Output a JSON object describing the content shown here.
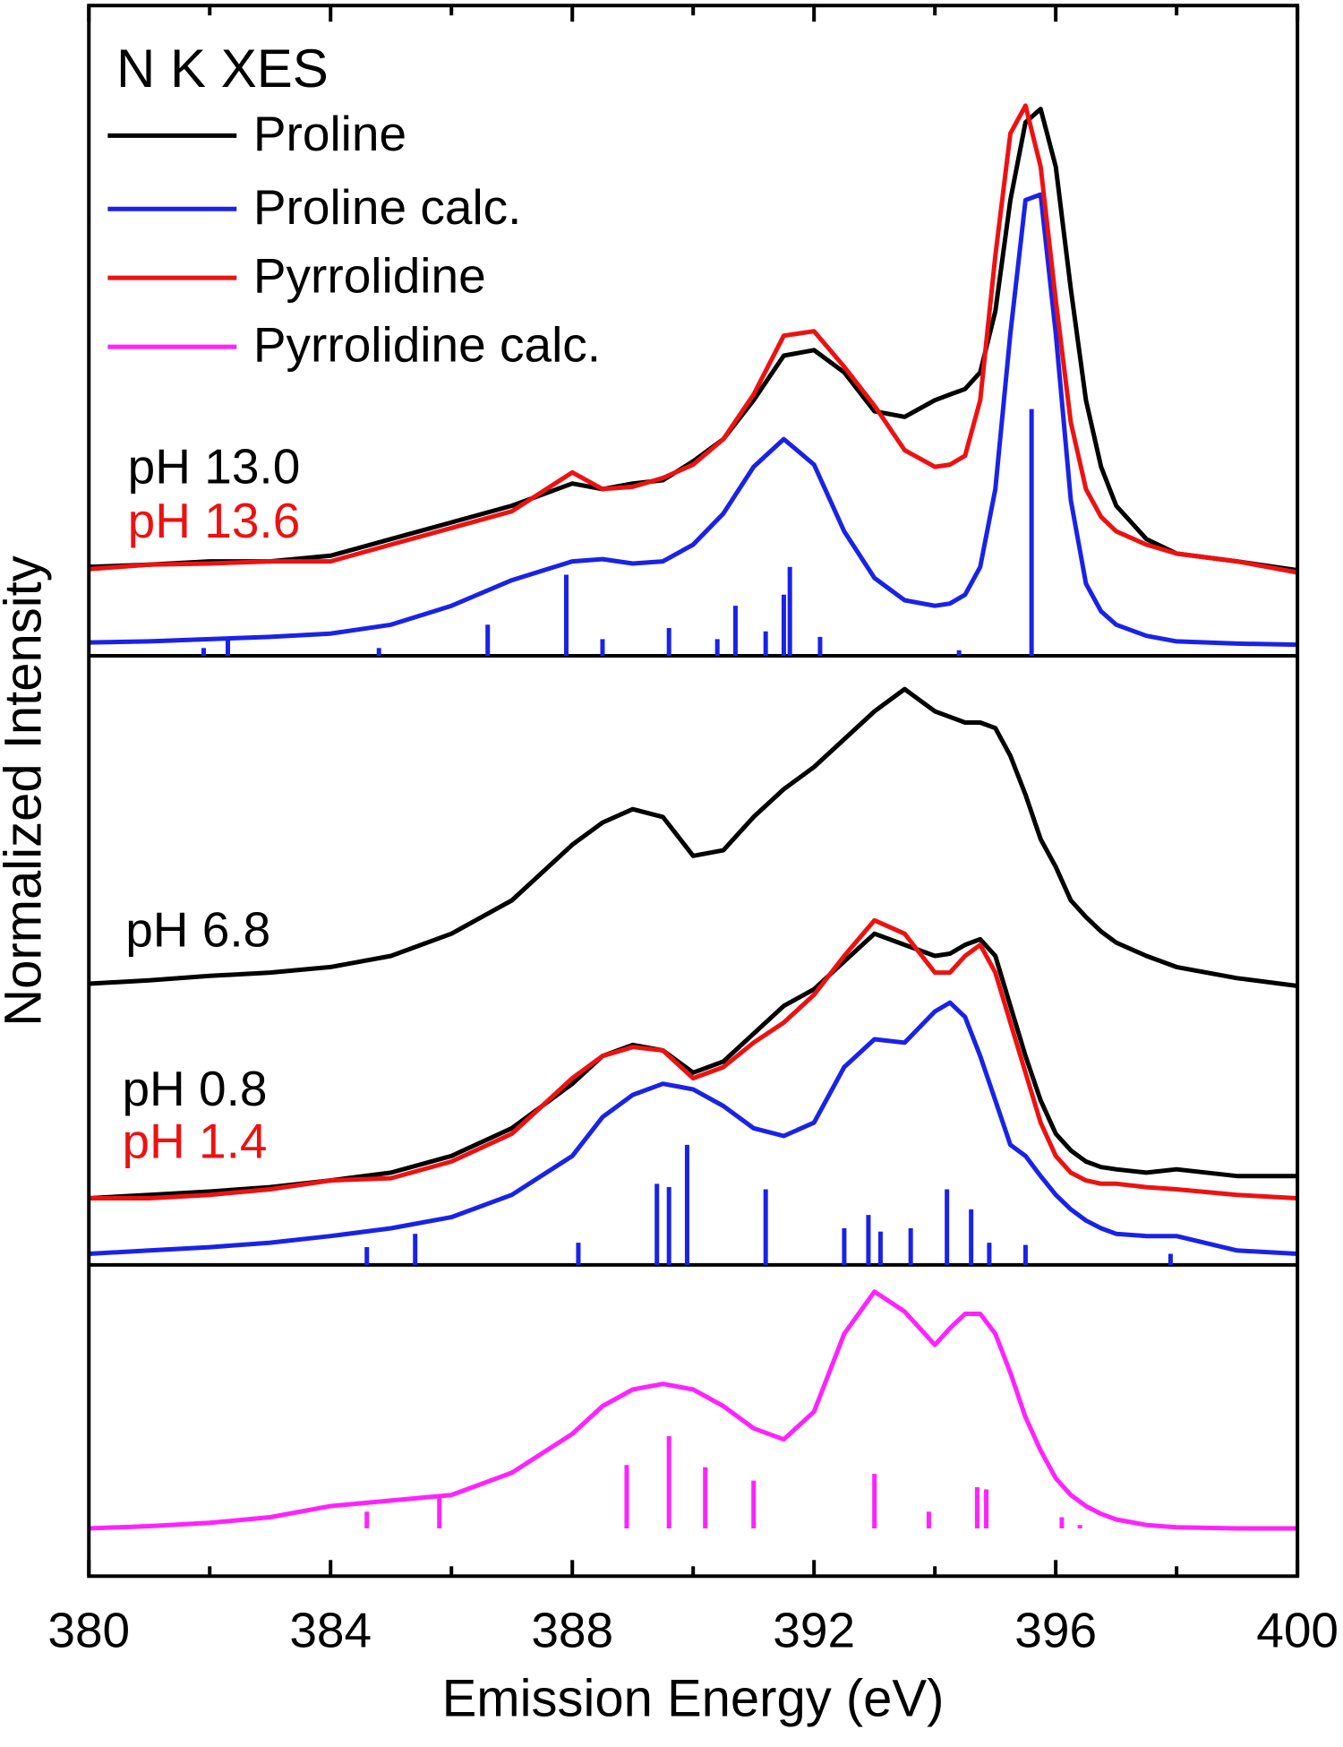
{
  "chart_data": {
    "type": "line",
    "title": "N K XES",
    "xlabel": "Emission Energy (eV)",
    "ylabel": "Normalized Intensity",
    "x": [
      380,
      381,
      382,
      383,
      384,
      385,
      386,
      387,
      388,
      388.5,
      389,
      389.5,
      390,
      390.5,
      391,
      391.5,
      392,
      392.5,
      393,
      393.5,
      394,
      394.25,
      394.5,
      394.75,
      395,
      395.25,
      395.5,
      395.75,
      396,
      396.25,
      396.5,
      396.75,
      397,
      397.5,
      398,
      399,
      400
    ],
    "xlim": [
      380,
      400
    ],
    "xticks": [
      380,
      384,
      388,
      392,
      396,
      400
    ],
    "xminorticks": [
      382,
      386,
      390,
      394,
      398
    ],
    "ylim": [
      0,
      1413
    ],
    "separators": [
      828,
      280
    ],
    "series": [
      {
        "name": "Proline",
        "color": "#000000",
        "curves": [
          [
            908,
            910,
            913,
            913,
            918,
            933,
            948,
            963,
            983,
            978,
            983,
            986,
            1003,
            1023,
            1058,
            1098,
            1103,
            1083,
            1048,
            1043,
            1058,
            1063,
            1068,
            1083,
            1138,
            1238,
            1308,
            1320,
            1268,
            1158,
            1058,
            998,
            963,
            933,
            920,
            913,
            905
          ],
          [
            533,
            536,
            540,
            543,
            548,
            558,
            578,
            608,
            658,
            678,
            690,
            683,
            648,
            653,
            683,
            708,
            728,
            753,
            778,
            798,
            778,
            773,
            768,
            768,
            763,
            738,
            703,
            663,
            638,
            608,
            593,
            580,
            570,
            558,
            548,
            538,
            531
          ],
          [
            340,
            343,
            346,
            350,
            356,
            363,
            378,
            403,
            443,
            468,
            478,
            473,
            453,
            463,
            488,
            513,
            528,
            553,
            578,
            568,
            558,
            560,
            568,
            573,
            558,
            513,
            468,
            428,
            398,
            383,
            373,
            368,
            366,
            363,
            366,
            360,
            360
          ]
        ]
      },
      {
        "name": "Proline calc.",
        "color": "#1a22e8",
        "curves": [
          [
            840,
            841,
            843,
            845,
            848,
            856,
            873,
            896,
            913,
            915,
            911,
            913,
            928,
            956,
            998,
            1023,
            1000,
            940,
            898,
            878,
            873,
            875,
            883,
            908,
            978,
            1118,
            1238,
            1243,
            1118,
            968,
            893,
            868,
            856,
            846,
            841,
            839,
            838
          ],
          [
            290,
            293,
            296,
            300,
            306,
            313,
            323,
            343,
            378,
            413,
            433,
            443,
            438,
            423,
            403,
            396,
            408,
            458,
            483,
            480,
            508,
            516,
            503,
            468,
            428,
            388,
            378,
            360,
            343,
            330,
            320,
            313,
            308,
            306,
            306,
            293,
            290
          ]
        ],
        "sticks": [
          {
            "x": [
              381.9,
              382.3,
              384.8,
              386.6,
              387.9,
              388.5,
              389.6,
              390.4,
              390.7,
              391.2,
              391.5,
              391.6,
              392.1,
              394.4,
              395.6
            ],
            "values": [
              835,
              843,
              835,
              856,
              901,
              843,
              853,
              843,
              873,
              850,
              883,
              908,
              845,
              833,
              1050
            ],
            "base": 828
          },
          {
            "x": [
              384.6,
              385.4,
              388.1,
              389.4,
              389.6,
              389.9,
              391.2,
              392.5,
              392.9,
              393.1,
              393.6,
              394.2,
              394.6,
              394.9,
              395.5,
              397.9
            ],
            "values": [
              296,
              308,
              300,
              353,
              350,
              388,
              348,
              313,
              325,
              310,
              313,
              348,
              330,
              300,
              298,
              290
            ],
            "base": 280
          }
        ]
      },
      {
        "name": "Pyrrolidine",
        "color": "#ee1111",
        "curves": [
          [
            906,
            910,
            911,
            913,
            913,
            928,
            943,
            958,
            993,
            978,
            980,
            988,
            1000,
            1023,
            1063,
            1116,
            1120,
            1088,
            1053,
            1013,
            998,
            1000,
            1008,
            1058,
            1188,
            1298,
            1323,
            1268,
            1148,
            1038,
            978,
            953,
            940,
            928,
            920,
            913,
            903
          ],
          [
            340,
            340,
            343,
            348,
            356,
            358,
            373,
            398,
            448,
            468,
            476,
            473,
            448,
            458,
            480,
            498,
            523,
            558,
            590,
            578,
            543,
            543,
            558,
            568,
            543,
            498,
            453,
            408,
            378,
            363,
            356,
            353,
            353,
            350,
            348,
            343,
            340
          ]
        ]
      },
      {
        "name": "Pyrrolidine calc.",
        "color": "#ff22ff",
        "curves": [
          [
            43,
            45,
            48,
            53,
            63,
            68,
            73,
            93,
            128,
            153,
            168,
            173,
            168,
            153,
            133,
            123,
            148,
            218,
            256,
            238,
            208,
            223,
            236,
            236,
            218,
            183,
            143,
            113,
            88,
            73,
            63,
            56,
            51,
            46,
            44,
            43,
            43
          ]
        ],
        "sticks": [
          {
            "x": [
              384.6,
              385.8,
              388.9,
              389.6,
              390.2,
              391.0,
              393.0,
              393.9,
              394.7,
              394.85,
              396.1,
              396.4
            ],
            "values": [
              58,
              73,
              100,
              126,
              98,
              86,
              92,
              58,
              80,
              78,
              53,
              46
            ],
            "base": 43
          }
        ]
      }
    ],
    "annotations": [
      {
        "text": "pH 13.0",
        "color": "#000000"
      },
      {
        "text": "pH 13.6",
        "color": "#ee1111"
      },
      {
        "text": "pH 6.8",
        "color": "#000000"
      },
      {
        "text": "pH 0.8",
        "color": "#000000"
      },
      {
        "text": "pH 1.4",
        "color": "#ee1111"
      }
    ]
  }
}
